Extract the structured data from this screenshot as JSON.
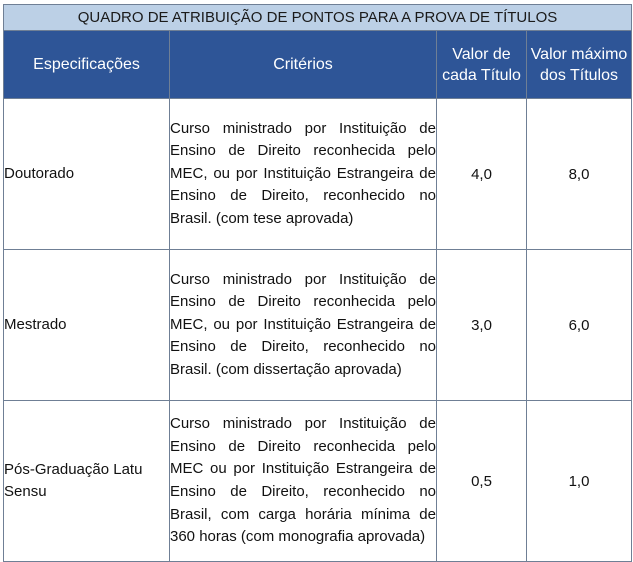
{
  "table": {
    "title": "QUADRO DE ATRIBUIÇÃO DE PONTOS PARA A PROVA DE TÍTULOS",
    "headers": {
      "spec": "Especificações",
      "criteria": "Critérios",
      "value_each": "Valor de cada Título",
      "value_max": "Valor máximo dos Títulos"
    },
    "rows": [
      {
        "spec": "Doutorado",
        "criteria": "Curso ministrado por Instituição de Ensino de Direito reconhecida pelo MEC, ou por Instituição Estrangeira de Ensino de Direito, reconhecido no Brasil. (com tese aprovada)",
        "value_each": "4,0",
        "value_max": "8,0"
      },
      {
        "spec": "Mestrado",
        "criteria": "Curso ministrado por Instituição de Ensino de Direito reconhecida pelo MEC, ou por Instituição Estrangeira de Ensino de Direito, reconhecido no Brasil. (com dissertação aprovada)",
        "value_each": "3,0",
        "value_max": "6,0"
      },
      {
        "spec": "Pós-Graduação Latu Sensu",
        "criteria": "Curso ministrado por Instituição de Ensino de Direito reconhecida pelo MEC ou por Instituição Estrangeira de Ensino de Direito, reconhecido no Brasil, com carga horária mínima de 360 horas (com monografia aprovada)",
        "value_each": "0,5",
        "value_max": "1,0"
      }
    ]
  }
}
